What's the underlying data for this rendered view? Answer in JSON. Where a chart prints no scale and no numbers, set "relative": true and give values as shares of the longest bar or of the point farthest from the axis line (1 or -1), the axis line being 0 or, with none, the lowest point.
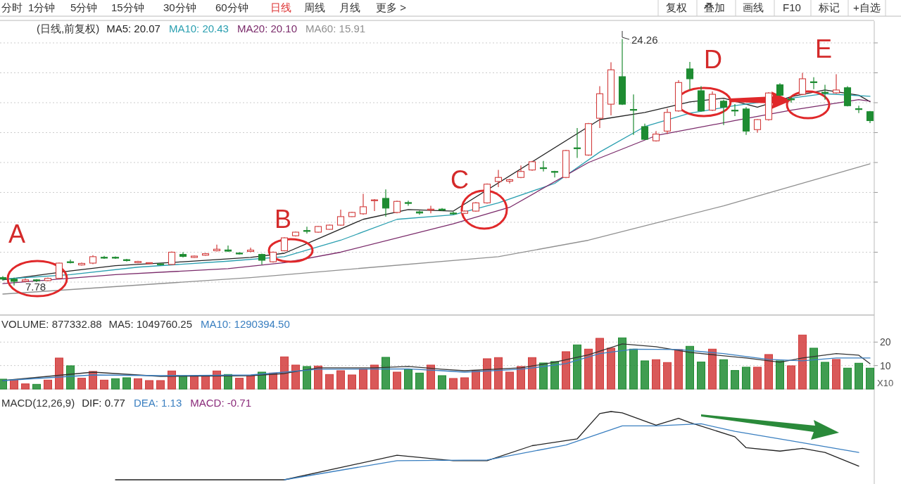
{
  "chart_data": [
    {
      "type": "candlestick",
      "title": "(日线,前复权)",
      "tick_labels": false,
      "grid": "y",
      "categories": [
        null,
        null,
        null,
        null,
        null,
        null,
        null,
        null,
        null,
        null,
        null,
        null,
        null,
        null,
        null,
        null,
        null,
        null,
        null,
        null,
        null,
        null,
        null,
        null,
        null,
        null,
        null,
        null,
        null,
        null,
        null,
        null,
        null,
        null,
        null,
        null,
        null,
        null,
        null,
        null,
        null,
        null,
        null,
        null,
        null,
        null,
        null,
        null,
        null,
        null,
        null,
        null,
        null,
        null,
        null,
        null,
        null,
        null,
        null,
        null,
        null,
        null,
        null,
        null,
        null,
        null,
        null,
        null,
        null,
        null,
        null,
        null,
        null,
        null,
        null,
        null,
        null,
        null
      ],
      "ohlc": [
        [
          8.3,
          8.4,
          8.1,
          8.2
        ],
        [
          8.2,
          8.3,
          7.78,
          8.05
        ],
        [
          8.05,
          8.25,
          8.0,
          8.15
        ],
        [
          8.15,
          8.2,
          8.0,
          8.1
        ],
        [
          8.1,
          8.3,
          8.05,
          8.25
        ],
        [
          8.25,
          9.3,
          8.2,
          9.27
        ],
        [
          9.36,
          9.5,
          9.25,
          9.33
        ],
        [
          9.15,
          9.3,
          9.1,
          9.25
        ],
        [
          9.27,
          9.8,
          9.2,
          9.7
        ],
        [
          9.66,
          9.75,
          9.55,
          9.64
        ],
        [
          9.66,
          9.72,
          9.55,
          9.64
        ],
        [
          9.5,
          9.55,
          9.38,
          9.44
        ],
        [
          9.3,
          9.42,
          9.26,
          9.38
        ],
        [
          9.24,
          9.32,
          9.2,
          9.3
        ],
        [
          9.22,
          9.26,
          9.12,
          9.18
        ],
        [
          9.18,
          10.05,
          9.15,
          10.0
        ],
        [
          9.85,
          10.0,
          9.65,
          9.72
        ],
        [
          9.65,
          9.78,
          9.62,
          9.74
        ],
        [
          9.8,
          9.95,
          9.77,
          9.9
        ],
        [
          10.1,
          10.5,
          10.05,
          10.2
        ],
        [
          10.15,
          10.45,
          10.02,
          10.07
        ],
        [
          9.94,
          10.0,
          9.85,
          9.92
        ],
        [
          10.05,
          10.3,
          10.0,
          10.14
        ],
        [
          9.85,
          9.9,
          9.18,
          9.46
        ],
        [
          9.36,
          10.05,
          9.3,
          10.0
        ],
        [
          10.1,
          11.0,
          10.05,
          10.96
        ],
        [
          11.1,
          11.38,
          11.05,
          11.34
        ],
        [
          11.45,
          11.7,
          11.25,
          11.41
        ],
        [
          11.34,
          11.75,
          11.3,
          11.72
        ],
        [
          11.53,
          11.85,
          11.5,
          11.81
        ],
        [
          11.81,
          12.85,
          11.78,
          12.38
        ],
        [
          12.38,
          12.7,
          12.35,
          12.66
        ],
        [
          12.57,
          13.9,
          12.5,
          13.04
        ],
        [
          13.45,
          13.55,
          12.75,
          13.5
        ],
        [
          13.6,
          14.2,
          12.38,
          12.95
        ],
        [
          12.66,
          13.45,
          12.6,
          13.4
        ],
        [
          13.32,
          13.45,
          13.1,
          13.28
        ],
        [
          12.7,
          12.78,
          12.5,
          12.62
        ],
        [
          12.82,
          13.1,
          12.6,
          12.88
        ],
        [
          12.88,
          12.95,
          12.75,
          12.82
        ],
        [
          12.62,
          12.7,
          12.5,
          12.58
        ],
        [
          12.6,
          12.8,
          12.55,
          12.75
        ],
        [
          12.75,
          13.35,
          12.7,
          13.3
        ],
        [
          13.3,
          14.6,
          13.25,
          14.55
        ],
        [
          14.73,
          15.5,
          14.35,
          15.0
        ],
        [
          14.75,
          14.9,
          14.6,
          14.85
        ],
        [
          15.0,
          15.8,
          14.95,
          15.4
        ],
        [
          15.5,
          16.1,
          15.45,
          16.05
        ],
        [
          15.65,
          16.1,
          15.4,
          15.6
        ],
        [
          15.4,
          15.45,
          15.0,
          15.35
        ],
        [
          15.0,
          16.85,
          14.95,
          16.8
        ],
        [
          16.98,
          18.3,
          16.3,
          16.94
        ],
        [
          16.5,
          18.65,
          16.45,
          18.6
        ],
        [
          18.96,
          21.1,
          18.3,
          20.6
        ],
        [
          19.9,
          22.7,
          19.15,
          22.2
        ],
        [
          21.74,
          24.26,
          19.85,
          19.9
        ],
        [
          19.55,
          20.55,
          17.85,
          19.5
        ],
        [
          18.4,
          18.6,
          17.5,
          17.55
        ],
        [
          17.45,
          18.1,
          17.4,
          17.9
        ],
        [
          18.1,
          19.6,
          17.9,
          19.35
        ],
        [
          19.45,
          21.5,
          19.4,
          21.35
        ],
        [
          22.26,
          22.73,
          20.85,
          21.6
        ],
        [
          20.8,
          21.1,
          19.4,
          19.45
        ],
        [
          19.5,
          20.75,
          19.45,
          20.56
        ],
        [
          20.1,
          20.2,
          18.5,
          19.7
        ],
        [
          19.5,
          19.9,
          19.1,
          19.45
        ],
        [
          19.58,
          19.7,
          17.85,
          18.1
        ],
        [
          18.2,
          18.9,
          18.0,
          18.87
        ],
        [
          18.87,
          20.7,
          18.8,
          20.65
        ],
        [
          21.2,
          21.3,
          20.45,
          20.5
        ],
        [
          20.25,
          20.4,
          20.0,
          20.2
        ],
        [
          20.56,
          22.0,
          20.5,
          21.6
        ],
        [
          21.4,
          21.7,
          20.9,
          21.36
        ],
        [
          20.7,
          21.2,
          20.2,
          20.66
        ],
        [
          20.66,
          21.9,
          20.6,
          20.85
        ],
        [
          21.0,
          21.1,
          19.75,
          19.8
        ],
        [
          19.6,
          19.8,
          19.3,
          19.58
        ],
        [
          19.4,
          19.45,
          18.64,
          18.8
        ]
      ],
      "ylim": [
        5.8,
        25.5
      ],
      "yticks": [
        {
          "value": 8,
          "label": null
        },
        {
          "value": 10,
          "label": null
        },
        {
          "value": 12,
          "label": null
        },
        {
          "value": 14,
          "label": null
        },
        {
          "value": 16,
          "label": null
        },
        {
          "value": 18,
          "label": null
        },
        {
          "value": 20,
          "label": null
        },
        {
          "value": 22,
          "label": null
        },
        {
          "value": 24,
          "label": null
        }
      ],
      "series": [
        {
          "name": "MA5: 20.07",
          "type": "line",
          "color": "#222222",
          "values": [
            8.15,
            null,
            null,
            null,
            null,
            null,
            8.75,
            null,
            null,
            null,
            9.1,
            null,
            null,
            null,
            null,
            null,
            9.36,
            null,
            null,
            null,
            null,
            null,
            9.65,
            null,
            null,
            9.93,
            null,
            null,
            10.9,
            null,
            null,
            null,
            12.2,
            null,
            null,
            null,
            12.85,
            null,
            null,
            null,
            12.75,
            null,
            null,
            null,
            null,
            null,
            null,
            null,
            null,
            null,
            null,
            null,
            null,
            18.87,
            null,
            null,
            null,
            19.35,
            null,
            null,
            null,
            20.05,
            null,
            null,
            20.3,
            null,
            null,
            19.7,
            null,
            null,
            20.4,
            null,
            null,
            20.85,
            null,
            null,
            20.5,
            20.07
          ]
        },
        {
          "name": "MA10: 20.43",
          "type": "line",
          "color": "#2a9fb0",
          "values": [
            8.2,
            null,
            null,
            null,
            null,
            null,
            8.5,
            null,
            null,
            null,
            null,
            null,
            9.0,
            null,
            null,
            null,
            null,
            null,
            null,
            null,
            9.4,
            null,
            null,
            null,
            null,
            9.7,
            null,
            null,
            null,
            null,
            10.8,
            null,
            null,
            null,
            null,
            12.2,
            null,
            null,
            null,
            null,
            12.5,
            null,
            null,
            null,
            13.3,
            null,
            null,
            null,
            null,
            14.6,
            null,
            null,
            null,
            16.7,
            null,
            null,
            null,
            18.4,
            null,
            null,
            null,
            19.3,
            null,
            null,
            null,
            19.8,
            null,
            null,
            null,
            null,
            null,
            null,
            null,
            20.6,
            null,
            null,
            null,
            20.43
          ]
        },
        {
          "name": "MA20: 20.10",
          "type": "line",
          "color": "#7a2a6a",
          "values": [
            7.9,
            null,
            null,
            null,
            null,
            null,
            null,
            null,
            null,
            null,
            8.5,
            null,
            null,
            null,
            null,
            null,
            null,
            null,
            null,
            null,
            8.9,
            null,
            null,
            null,
            null,
            9.3,
            null,
            null,
            null,
            null,
            10.0,
            null,
            null,
            null,
            null,
            null,
            null,
            null,
            null,
            null,
            11.9,
            null,
            null,
            null,
            null,
            13.0,
            null,
            null,
            null,
            null,
            null,
            null,
            16.0,
            null,
            null,
            null,
            null,
            null,
            17.8,
            null,
            null,
            null,
            null,
            null,
            null,
            18.8,
            null,
            null,
            null,
            null,
            19.5,
            null,
            null,
            null,
            null,
            null,
            20.2,
            20.1
          ]
        },
        {
          "name": "MA60: 15.91",
          "type": "line",
          "color": "#909090",
          "values": [
            7.2,
            null,
            null,
            null,
            null,
            null,
            null,
            null,
            null,
            null,
            null,
            null,
            null,
            null,
            null,
            null,
            null,
            null,
            null,
            null,
            null,
            null,
            8.3,
            null,
            null,
            null,
            null,
            null,
            null,
            null,
            null,
            null,
            null,
            null,
            null,
            null,
            null,
            null,
            null,
            null,
            null,
            null,
            null,
            null,
            9.7,
            null,
            null,
            null,
            null,
            null,
            null,
            null,
            10.8,
            null,
            null,
            null,
            null,
            null,
            null,
            null,
            null,
            null,
            null,
            null,
            13.1,
            null,
            null,
            null,
            null,
            null,
            null,
            null,
            null,
            null,
            null,
            null,
            null,
            15.91
          ]
        }
      ],
      "annotations": [
        "分时",
        "1分钟",
        "5分钟",
        "15分钟",
        "30分钟",
        "60分钟",
        "日线",
        "周线",
        "月线",
        "更多 >",
        "复权",
        "叠加",
        "画线",
        "F10",
        "标记",
        "+自选",
        "A",
        "B",
        "C",
        "D",
        "E",
        "24.26",
        "7.78"
      ]
    },
    {
      "type": "bar",
      "title": "VOLUME: 877332.88",
      "grid": "y",
      "tick_labels": "y",
      "categories": [
        null,
        null,
        null,
        null,
        null,
        null,
        null,
        null,
        null,
        null,
        null,
        null,
        null,
        null,
        null,
        null,
        null,
        null,
        null,
        null,
        null,
        null,
        null,
        null,
        null,
        null,
        null,
        null,
        null,
        null,
        null,
        null,
        null,
        null,
        null,
        null,
        null,
        null,
        null,
        null,
        null,
        null,
        null,
        null,
        null,
        null,
        null,
        null,
        null,
        null,
        null,
        null,
        null,
        null,
        null,
        null,
        null,
        null,
        null,
        null,
        null,
        null,
        null,
        null,
        null,
        null,
        null,
        null,
        null,
        null,
        null,
        null,
        null,
        null,
        null,
        null,
        null,
        null
      ],
      "ylim": [
        0,
        31.5
      ],
      "yticks": [
        10,
        20
      ],
      "series": [
        {
          "type": "bar",
          "values": [
            4.2,
            3.8,
            2.2,
            2.0,
            3.8,
            13.2,
            9.9,
            4.6,
            7.5,
            3.8,
            4.4,
            4.8,
            4.4,
            3.6,
            3.6,
            7.7,
            5.7,
            5.7,
            5.7,
            7.7,
            6.2,
            4.6,
            5.7,
            7.2,
            6.8,
            13.7,
            10.2,
            9.6,
            9.8,
            6.2,
            7.8,
            6.0,
            8.6,
            10.2,
            13.5,
            7.2,
            8.4,
            6.8,
            10.2,
            5.7,
            4.5,
            4.8,
            7.8,
            12.9,
            13.4,
            7.2,
            9.6,
            13.4,
            11.1,
            11.7,
            15.9,
            18.8,
            17.0,
            21.6,
            17.4,
            21.8,
            17.0,
            12.0,
            12.5,
            11.3,
            16.8,
            18.2,
            11.5,
            17.0,
            12.5,
            7.9,
            9.3,
            9.3,
            14.7,
            12.0,
            9.9,
            23.0,
            17.4,
            11.4,
            12.6,
            8.9,
            11.0,
            8.9
          ],
          "colors": [
            "#1e8c32",
            "#d23c3c",
            "#d23c3c",
            "#1e8c32",
            "#d23c3c",
            "#d23c3c",
            "#1e8c32",
            "#d23c3c",
            "#d23c3c",
            "#d23c3c",
            "#1e8c32",
            "#1e8c32",
            "#d23c3c",
            "#d23c3c",
            "#d23c3c",
            "#d23c3c",
            "#1e8c32",
            "#d23c3c",
            "#d23c3c",
            "#d23c3c",
            "#1e8c32",
            "#d23c3c",
            "#d23c3c",
            "#1e8c32",
            "#d23c3c",
            "#d23c3c",
            "#d23c3c",
            "#1e8c32",
            "#d23c3c",
            "#d23c3c",
            "#d23c3c",
            "#d23c3c",
            "#d23c3c",
            "#d23c3c",
            "#1e8c32",
            "#d23c3c",
            "#1e8c32",
            "#1e8c32",
            "#d23c3c",
            "#1e8c32",
            "#d23c3c",
            "#d23c3c",
            "#d23c3c",
            "#d23c3c",
            "#d23c3c",
            "#d23c3c",
            "#d23c3c",
            "#d23c3c",
            "#1e8c32",
            "#1e8c32",
            "#d23c3c",
            "#1e8c32",
            "#d23c3c",
            "#d23c3c",
            "#d23c3c",
            "#1e8c32",
            "#1e8c32",
            "#1e8c32",
            "#d23c3c",
            "#d23c3c",
            "#d23c3c",
            "#1e8c32",
            "#1e8c32",
            "#d23c3c",
            "#1e8c32",
            "#1e8c32",
            "#1e8c32",
            "#d23c3c",
            "#d23c3c",
            "#1e8c32",
            "#d23c3c",
            "#d23c3c",
            "#1e8c32",
            "#1e8c32",
            "#d23c3c",
            "#1e8c32",
            "#1e8c32",
            "#1e8c32"
          ]
        },
        {
          "name": "MA5: 1049760.25",
          "type": "line",
          "color": "#333333",
          "values": [
            3.6,
            null,
            null,
            null,
            null,
            null,
            null,
            null,
            7.2,
            null,
            null,
            null,
            null,
            null,
            5.4,
            null,
            null,
            null,
            null,
            null,
            null,
            null,
            5.7,
            null,
            null,
            6.6,
            null,
            null,
            9.0,
            null,
            null,
            null,
            null,
            9.0,
            null,
            null,
            9.6,
            null,
            null,
            8.4,
            null,
            7.8,
            null,
            null,
            null,
            null,
            9.0,
            null,
            null,
            11.4,
            null,
            null,
            14.6,
            null,
            null,
            19.2,
            null,
            null,
            18.0,
            null,
            null,
            15.6,
            null,
            null,
            null,
            null,
            13.2,
            null,
            null,
            11.4,
            null,
            13.2,
            null,
            null,
            15.1,
            null,
            14.4,
            10.8
          ]
        },
        {
          "name": "MA10: 1290394.50",
          "type": "line",
          "color": "#3a7fc0",
          "values": [
            3.6,
            null,
            null,
            null,
            null,
            null,
            null,
            null,
            6.0,
            null,
            null,
            null,
            null,
            null,
            5.7,
            null,
            null,
            null,
            null,
            null,
            null,
            null,
            6.0,
            null,
            null,
            null,
            null,
            null,
            8.4,
            null,
            null,
            null,
            null,
            null,
            null,
            null,
            8.6,
            null,
            null,
            7.8,
            null,
            7.2,
            null,
            null,
            null,
            null,
            8.4,
            null,
            null,
            null,
            10.8,
            null,
            null,
            15.1,
            null,
            null,
            17.0,
            null,
            null,
            null,
            16.8,
            null,
            null,
            null,
            15.1,
            null,
            null,
            null,
            12.6,
            null,
            null,
            12.0,
            null,
            null,
            13.2,
            null,
            null,
            13.2
          ]
        }
      ],
      "annotations": [
        "X10"
      ]
    },
    {
      "type": "line",
      "title": "MACD(12,26,9)",
      "relative": true,
      "tick_labels": false,
      "categories": [
        null,
        null,
        null,
        null,
        null,
        null,
        null,
        null,
        null,
        null,
        null,
        null,
        null,
        null,
        null,
        null,
        null,
        null,
        null,
        null,
        null,
        null,
        null,
        null,
        null,
        null,
        null,
        null,
        null,
        null,
        null,
        null,
        null,
        null,
        null,
        null,
        null,
        null,
        null,
        null,
        null,
        null,
        null,
        null,
        null,
        null,
        null,
        null,
        null,
        null,
        null,
        null,
        null,
        null,
        null,
        null,
        null,
        null,
        null,
        null,
        null,
        null,
        null,
        null,
        null,
        null,
        null,
        null,
        null,
        null,
        null,
        null,
        null,
        null,
        null,
        null,
        null,
        null
      ],
      "series": [
        {
          "name": "DIF: 0.77",
          "color": "#222222",
          "values": [
            null,
            null,
            null,
            null,
            null,
            null,
            null,
            null,
            null,
            null,
            0,
            null,
            null,
            null,
            null,
            null,
            null,
            null,
            null,
            null,
            null,
            null,
            null,
            null,
            null,
            0,
            null,
            null,
            null,
            null,
            null,
            null,
            null,
            null,
            null,
            0.36,
            null,
            null,
            null,
            null,
            0.28,
            null,
            null,
            0.28,
            null,
            null,
            null,
            0.5,
            null,
            null,
            null,
            0.6,
            null,
            0.97,
            1.0,
            0.98,
            null,
            null,
            0.8,
            null,
            0.9,
            0.84,
            null,
            null,
            null,
            0.63,
            0.47,
            null,
            null,
            0.42,
            null,
            0.46,
            null,
            0.4,
            null,
            null,
            0.2,
            null
          ]
        },
        {
          "name": "DEA: 1.13",
          "color": "#3a7fc0",
          "values": [
            null,
            null,
            null,
            null,
            null,
            null,
            null,
            null,
            null,
            null,
            null,
            null,
            null,
            null,
            null,
            null,
            null,
            null,
            null,
            null,
            null,
            null,
            null,
            null,
            null,
            0,
            null,
            null,
            null,
            null,
            null,
            null,
            null,
            null,
            null,
            0.28,
            null,
            null,
            null,
            null,
            null,
            null,
            null,
            0.29,
            null,
            null,
            null,
            null,
            null,
            null,
            0.51,
            null,
            null,
            null,
            null,
            0.79,
            null,
            null,
            0.79,
            null,
            null,
            null,
            0.82,
            null,
            null,
            0.71,
            null,
            null,
            null,
            null,
            0.57,
            null,
            null,
            null,
            null,
            null,
            0.4,
            null
          ]
        }
      ],
      "annotations": [
        "MACD: -0.71"
      ]
    }
  ]
}
